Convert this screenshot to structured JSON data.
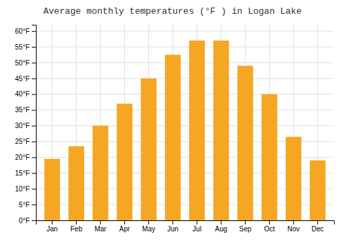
{
  "chart_data": {
    "type": "bar",
    "title": "Average monthly temperatures (°F ) in Logan Lake",
    "categories": [
      "Jan",
      "Feb",
      "Mar",
      "Apr",
      "May",
      "Jun",
      "Jul",
      "Aug",
      "Sep",
      "Oct",
      "Nov",
      "Dec"
    ],
    "values": [
      19.5,
      23.5,
      30,
      37,
      45,
      52.5,
      57,
      57,
      49,
      40,
      26.5,
      19
    ],
    "color": "#F5A623",
    "ylim": [
      0,
      62
    ],
    "yticks": [
      {
        "value": 0,
        "label": "0°F"
      },
      {
        "value": 5,
        "label": "5°F"
      },
      {
        "value": 10,
        "label": "10°F"
      },
      {
        "value": 15,
        "label": "15°F"
      },
      {
        "value": 20,
        "label": "20°F"
      },
      {
        "value": 25,
        "label": "25°F"
      },
      {
        "value": 30,
        "label": "30°F"
      },
      {
        "value": 35,
        "label": "35°F"
      },
      {
        "value": 40,
        "label": "40°F"
      },
      {
        "value": 45,
        "label": "45°F"
      },
      {
        "value": 50,
        "label": "50°F"
      },
      {
        "value": 55,
        "label": "55°F"
      },
      {
        "value": 60,
        "label": "60°F"
      }
    ],
    "grid": true
  }
}
